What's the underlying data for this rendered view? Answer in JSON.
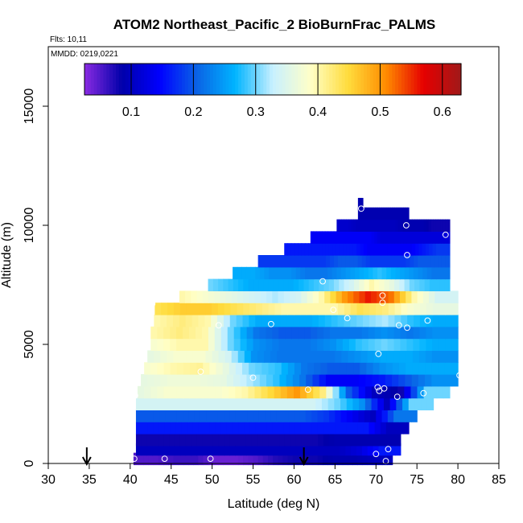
{
  "chart_data": {
    "type": "heatmap",
    "title": "ATOM2 Northeast_Pacific_2 BioBurnFrac_PALMS",
    "annotations": {
      "flights": "Flts: 10,11",
      "dates": "MMDD: 0219,0221"
    },
    "xlabel": "Latitude (deg N)",
    "ylabel": "Altitude (m)",
    "xlim": [
      30,
      85
    ],
    "ylim": [
      0,
      17500
    ],
    "x_ticks": [
      30,
      35,
      40,
      45,
      50,
      55,
      60,
      65,
      70,
      75,
      80,
      85
    ],
    "y_ticks": [
      0,
      5000,
      10000,
      15000
    ],
    "colorbar": {
      "range": [
        0.025,
        0.63
      ],
      "ticks": [
        0.1,
        0.2,
        0.3,
        0.4,
        0.5,
        0.6
      ],
      "colors": [
        "#8a2be2",
        "#0000aa",
        "#0000ff",
        "#0a64e6",
        "#00b4ff",
        "#c8f0ff",
        "#ffffc8",
        "#ffdc3c",
        "#ff8c00",
        "#e60000",
        "#a01919"
      ]
    },
    "markers": [
      {
        "type": "arrow",
        "lat": 34.7,
        "label": ""
      },
      {
        "type": "arrow",
        "lat": 61.2,
        "label": ""
      }
    ],
    "rows": [
      {
        "alt": 200,
        "lat": [
          40.4,
          72
        ],
        "values": [
          0.05,
          0.05,
          0.06,
          0.06,
          0.04,
          0.04,
          0.05,
          0.07,
          0.08,
          0.08,
          0.09,
          0.09,
          0.1
        ]
      },
      {
        "alt": 600,
        "lat": [
          40.7,
          73
        ],
        "values": [
          0.1,
          0.1,
          0.1,
          0.1,
          0.1,
          0.1,
          0.1,
          0.1,
          0.1,
          0.1,
          0.12,
          0.16
        ]
      },
      {
        "alt": 1000,
        "lat": [
          40.7,
          73
        ],
        "values": [
          0.08,
          0.08,
          0.08,
          0.08,
          0.08,
          0.08,
          0.08,
          0.08,
          0.08,
          0.09,
          0.09,
          0.09
        ]
      },
      {
        "alt": 1500,
        "lat": [
          40.7,
          74
        ],
        "values": [
          0.16,
          0.16,
          0.16,
          0.16,
          0.16,
          0.16,
          0.16,
          0.16,
          0.16,
          0.16,
          0.16,
          0.1
        ]
      },
      {
        "alt": 2000,
        "lat": [
          40.7,
          75
        ],
        "values": [
          0.2,
          0.2,
          0.2,
          0.2,
          0.2,
          0.2,
          0.2,
          0.2,
          0.18,
          0.14,
          0.1,
          0.22
        ]
      },
      {
        "alt": 2500,
        "lat": [
          40.7,
          77
        ],
        "values": [
          0.34,
          0.34,
          0.34,
          0.34,
          0.34,
          0.34,
          0.34,
          0.34,
          0.3,
          0.24,
          0.1,
          0.3
        ]
      },
      {
        "alt": 3000,
        "lat": [
          40.9,
          79
        ],
        "values": [
          0.36,
          0.38,
          0.38,
          0.38,
          0.4,
          0.45,
          0.5,
          0.42,
          0.2,
          0.1,
          0.08,
          0.3
        ]
      },
      {
        "alt": 3500,
        "lat": [
          41.3,
          80
        ],
        "values": [
          0.36,
          0.37,
          0.37,
          0.36,
          0.32,
          0.28,
          0.22,
          0.14,
          0.14,
          0.16,
          0.2,
          0.24
        ]
      },
      {
        "alt": 4000,
        "lat": [
          41.7,
          80
        ],
        "values": [
          0.38,
          0.4,
          0.41,
          0.36,
          0.3,
          0.28,
          0.22,
          0.2,
          0.2,
          0.24,
          0.26,
          0.26
        ]
      },
      {
        "alt": 4500,
        "lat": [
          42.1,
          80
        ],
        "values": [
          0.36,
          0.38,
          0.38,
          0.34,
          0.24,
          0.22,
          0.22,
          0.22,
          0.24,
          0.26,
          0.26,
          0.24
        ]
      },
      {
        "alt": 5000,
        "lat": [
          42.5,
          80
        ],
        "values": [
          0.38,
          0.4,
          0.4,
          0.3,
          0.24,
          0.22,
          0.22,
          0.24,
          0.28,
          0.3,
          0.28,
          0.26
        ]
      },
      {
        "alt": 5500,
        "lat": [
          42.5,
          80
        ],
        "values": [
          0.4,
          0.42,
          0.4,
          0.3,
          0.22,
          0.2,
          0.2,
          0.22,
          0.22,
          0.24,
          0.22,
          0.24
        ]
      },
      {
        "alt": 6000,
        "lat": [
          42.9,
          80
        ],
        "values": [
          0.4,
          0.42,
          0.4,
          0.3,
          0.26,
          0.26,
          0.26,
          0.28,
          0.3,
          0.32,
          0.28,
          0.26
        ]
      },
      {
        "alt": 6500,
        "lat": [
          43.0,
          80
        ],
        "values": [
          0.44,
          0.46,
          0.46,
          0.44,
          0.42,
          0.4,
          0.4,
          0.4,
          0.44,
          0.42,
          0.38,
          0.36
        ]
      },
      {
        "alt": 7000,
        "lat": [
          46.0,
          80
        ],
        "values": [
          0.4,
          0.38,
          0.36,
          0.34,
          0.32,
          0.34,
          0.4,
          0.5,
          0.56,
          0.52,
          0.4,
          0.34
        ]
      },
      {
        "alt": 7500,
        "lat": [
          49.5,
          79
        ],
        "values": [
          0.3,
          0.28,
          0.26,
          0.26,
          0.26,
          0.28,
          0.3,
          0.34,
          0.4,
          0.36,
          0.3,
          0.28
        ]
      },
      {
        "alt": 8000,
        "lat": [
          52.5,
          79
        ],
        "values": [
          0.26,
          0.26,
          0.24,
          0.24,
          0.22,
          0.22,
          0.24,
          0.26,
          0.28,
          0.26,
          0.24,
          0.22
        ]
      },
      {
        "alt": 8500,
        "lat": [
          55.6,
          79
        ],
        "values": [
          0.18,
          0.18,
          0.18,
          0.18,
          0.18,
          0.2,
          0.2,
          0.18,
          0.18,
          0.18,
          0.2,
          0.2
        ]
      },
      {
        "alt": 9000,
        "lat": [
          58.8,
          79
        ],
        "values": [
          0.16,
          0.16,
          0.16,
          0.16,
          0.16,
          0.16,
          0.14,
          0.14,
          0.14,
          0.14,
          0.16,
          0.18
        ]
      },
      {
        "alt": 9500,
        "lat": [
          62.0,
          79
        ],
        "values": [
          0.14,
          0.14,
          0.14,
          0.14,
          0.14,
          0.14,
          0.12,
          0.12,
          0.12,
          0.12,
          0.12,
          0.12
        ]
      },
      {
        "alt": 10000,
        "lat": [
          65.2,
          79
        ],
        "values": [
          0.11,
          0.11,
          0.1,
          0.1,
          0.1,
          0.1,
          0.1,
          0.09,
          0.09,
          0.09,
          0.08,
          0.08
        ]
      },
      {
        "alt": 10500,
        "lat": [
          67.8,
          74
        ],
        "values": [
          0.09,
          0.09,
          0.09,
          0.09,
          0.09,
          0.09,
          0.09,
          0.09,
          0.09
        ]
      },
      {
        "alt": 10900,
        "lat": [
          67.8,
          68.4
        ],
        "values": [
          0.09
        ]
      }
    ],
    "points": [
      [
        40.5,
        200
      ],
      [
        44.2,
        200
      ],
      [
        49.8,
        200
      ],
      [
        70.0,
        400
      ],
      [
        71.5,
        600
      ],
      [
        71.2,
        100
      ],
      [
        72.6,
        2800
      ],
      [
        70.2,
        3200
      ],
      [
        70.4,
        3050
      ],
      [
        71.0,
        3150
      ],
      [
        61.7,
        3100
      ],
      [
        75.8,
        2950
      ],
      [
        80.2,
        3700
      ],
      [
        48.6,
        3850
      ],
      [
        55.0,
        3600
      ],
      [
        70.3,
        4600
      ],
      [
        50.8,
        5800
      ],
      [
        57.2,
        5850
      ],
      [
        72.8,
        5800
      ],
      [
        73.8,
        5700
      ],
      [
        76.3,
        6000
      ],
      [
        64.8,
        6450
      ],
      [
        66.5,
        6100
      ],
      [
        42.7,
        6700
      ],
      [
        70.8,
        7050
      ],
      [
        70.8,
        6750
      ],
      [
        63.5,
        7650
      ],
      [
        73.8,
        8750
      ],
      [
        78.5,
        9600
      ],
      [
        73.7,
        10000
      ],
      [
        68.2,
        10700
      ],
      [
        40.6,
        2850
      ]
    ]
  }
}
